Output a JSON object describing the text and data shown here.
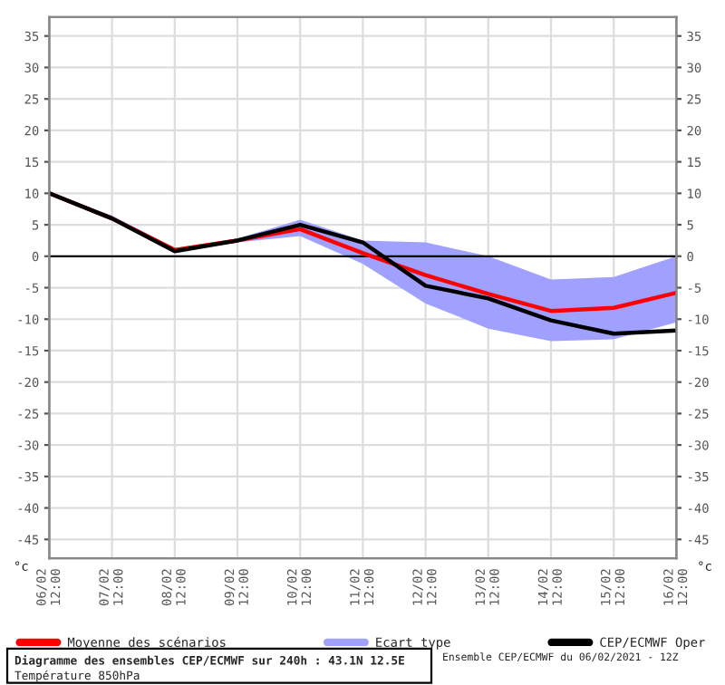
{
  "chart_data": {
    "type": "line",
    "title": "Diagramme des ensembles CEP/ECMWF sur 240h : 43.1N 12.5E",
    "subtitle": "Température 850hPa",
    "ylabel": "°c",
    "y2label": "°c",
    "annotations": [
      "Ensemble CEP/ECMWF du 06/02/2021 - 12Z"
    ],
    "categories": [
      "06/02\n12:00",
      "07/02\n12:00",
      "08/02\n12:00",
      "09/02\n12:00",
      "10/02\n12:00",
      "11/02\n12:00",
      "12/02\n12:00",
      "13/02\n12:00",
      "14/02\n12:00",
      "15/02\n12:00",
      "16/02\n12:00"
    ],
    "series": [
      {
        "name": "Moyenne des scénarios",
        "color": "#ff0000",
        "values": [
          10,
          6,
          1,
          2.5,
          4.3,
          0.5,
          -3,
          -6,
          -8.7,
          -8.2,
          -5.8
        ]
      },
      {
        "name": "Ecart type",
        "type": "area",
        "color": "#a0a0ff",
        "values": [
          null,
          null,
          null,
          null,
          null,
          null,
          null,
          null,
          null,
          null,
          null
        ],
        "lower": [
          10,
          5.8,
          0.6,
          2.2,
          3.2,
          -1.2,
          -7.5,
          -11.5,
          -13.5,
          -13.2,
          -10.5
        ],
        "upper": [
          10,
          6.5,
          1.3,
          2.8,
          5.8,
          2.5,
          2.2,
          0,
          -3.7,
          -3.3,
          0
        ]
      },
      {
        "name": "CEP/ECMWF Oper",
        "color": "#000000",
        "values": [
          10,
          6,
          0.8,
          2.5,
          5,
          2.2,
          -4.7,
          -6.7,
          -10.2,
          -12.3,
          -11.8
        ]
      }
    ],
    "ylim": [
      -48,
      38
    ],
    "yticks": [
      -45,
      -40,
      -35,
      -30,
      -25,
      -20,
      -15,
      -10,
      -5,
      0,
      5,
      10,
      15,
      20,
      25,
      30,
      35
    ],
    "y2lim": [
      -48,
      38
    ],
    "y2ticks": [
      -45,
      -40,
      -35,
      -30,
      -25,
      -20,
      -15,
      -10,
      -5,
      0,
      5,
      10,
      15,
      20,
      25,
      30,
      35
    ],
    "ref_lines": [
      {
        "axis": "y",
        "value": 0,
        "color": "#000000"
      }
    ],
    "grid": true,
    "legend": "bottom",
    "line_style": "solid",
    "marker": "none"
  }
}
